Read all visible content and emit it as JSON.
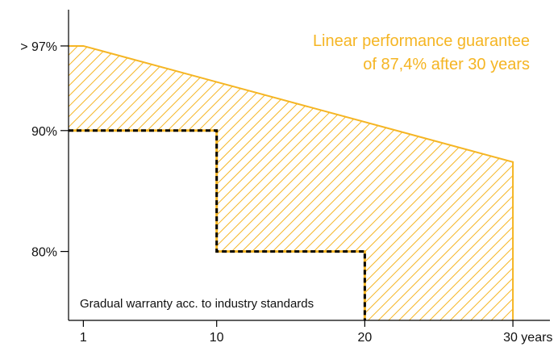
{
  "chart_data": {
    "type": "area",
    "x_ticks": [
      {
        "value": 1,
        "label": "1"
      },
      {
        "value": 10,
        "label": "10"
      },
      {
        "value": 20,
        "label": "20"
      },
      {
        "value": 30,
        "label": "30 years"
      }
    ],
    "y_ticks": [
      {
        "value": 97,
        "label": "> 97%"
      },
      {
        "value": 90,
        "label": "90%"
      },
      {
        "value": 80,
        "label": "80%"
      }
    ],
    "xlim": [
      0,
      32.5
    ],
    "ylim": [
      74.3,
      100
    ],
    "linear_guarantee": {
      "x": [
        0,
        1,
        30
      ],
      "y": [
        97,
        97,
        87.4
      ]
    },
    "gradual_warranty": {
      "x": [
        0,
        10,
        10,
        20,
        20
      ],
      "y": [
        90,
        90,
        80,
        80,
        74.3
      ]
    },
    "annotations": {
      "linear_line1": "Linear performance guarantee",
      "linear_line2": "of 87,4% after 30 years",
      "gradual": "Gradual warranty acc. to industry standards"
    },
    "colors": {
      "accent": "#F5B523",
      "axis": "#000000",
      "dash": "#000000"
    },
    "grid": false
  }
}
